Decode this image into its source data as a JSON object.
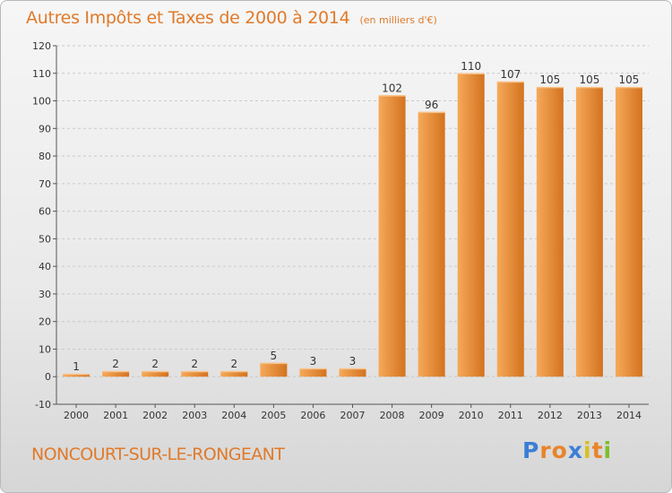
{
  "title": "Autres Impôts et Taxes de 2000 à 2014",
  "unit_note": "(en milliers d'€)",
  "commune": "NONCOURT-SUR-LE-RONGEANT",
  "logo": {
    "text": "Proxiti",
    "letter_colors": [
      "#3a7fd5",
      "#e8842a",
      "#e8842a",
      "#3a7fd5",
      "#d9c01f",
      "#e8842a",
      "#7dbf2a"
    ]
  },
  "colors": {
    "bar_light": "#f6a95a",
    "bar_dark": "#d3731f",
    "bar_top": "#f8c289",
    "text": "#e07a2a",
    "axis_text": "#333333"
  },
  "chart_data": {
    "type": "bar",
    "title": "Autres Impôts et Taxes de 2000 à 2014",
    "subtitle": "(en milliers d'€)",
    "categories": [
      "2000",
      "2001",
      "2002",
      "2003",
      "2004",
      "2005",
      "2006",
      "2007",
      "2008",
      "2009",
      "2010",
      "2011",
      "2012",
      "2013",
      "2014"
    ],
    "values": [
      1,
      2,
      2,
      2,
      2,
      5,
      3,
      3,
      102,
      96,
      110,
      107,
      105,
      105,
      105
    ],
    "ylim": [
      -10,
      120
    ],
    "yticks": [
      -10,
      0,
      10,
      20,
      30,
      40,
      50,
      60,
      70,
      80,
      90,
      100,
      110,
      120
    ],
    "grid": "horizontal dashed",
    "xlabel": "",
    "ylabel": ""
  }
}
